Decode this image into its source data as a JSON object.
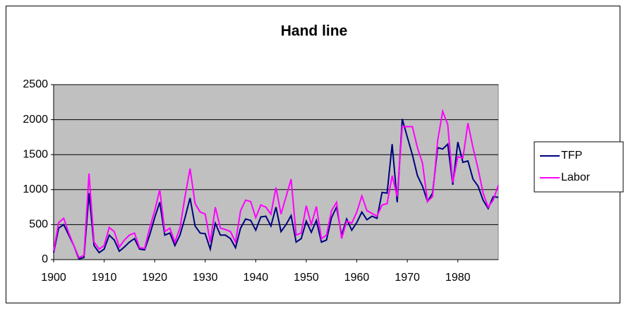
{
  "chart_data": {
    "type": "line",
    "title": "Hand line",
    "x": [
      1900,
      1901,
      1902,
      1903,
      1904,
      1905,
      1906,
      1907,
      1908,
      1909,
      1910,
      1911,
      1912,
      1913,
      1914,
      1915,
      1916,
      1917,
      1918,
      1919,
      1920,
      1921,
      1922,
      1923,
      1924,
      1925,
      1926,
      1927,
      1928,
      1929,
      1930,
      1931,
      1932,
      1933,
      1934,
      1935,
      1936,
      1937,
      1938,
      1939,
      1940,
      1941,
      1942,
      1943,
      1944,
      1945,
      1946,
      1947,
      1948,
      1949,
      1950,
      1951,
      1952,
      1953,
      1954,
      1955,
      1956,
      1957,
      1958,
      1959,
      1960,
      1961,
      1962,
      1963,
      1964,
      1965,
      1966,
      1967,
      1968,
      1969,
      1970,
      1971,
      1972,
      1973,
      1974,
      1975,
      1976,
      1977,
      1978,
      1979,
      1980,
      1981,
      1982,
      1983,
      1984,
      1985,
      1986,
      1987,
      1988
    ],
    "series": [
      {
        "name": "TFP",
        "color": "#000080",
        "values": [
          100,
          450,
          500,
          350,
          200,
          10,
          30,
          950,
          200,
          100,
          150,
          350,
          280,
          120,
          180,
          250,
          300,
          150,
          140,
          350,
          600,
          820,
          350,
          380,
          200,
          350,
          600,
          880,
          480,
          380,
          370,
          150,
          520,
          350,
          350,
          300,
          170,
          450,
          580,
          560,
          420,
          610,
          620,
          480,
          750,
          400,
          500,
          630,
          250,
          300,
          550,
          390,
          560,
          250,
          280,
          600,
          750,
          350,
          580,
          420,
          530,
          680,
          570,
          620,
          590,
          960,
          950,
          1650,
          820,
          2010,
          1750,
          1500,
          1200,
          1050,
          830,
          950,
          1600,
          1580,
          1650,
          1070,
          1680,
          1390,
          1410,
          1150,
          1050,
          850,
          730,
          900,
          890
        ]
      },
      {
        "name": "Labor",
        "color": "#ff00ff",
        "values": [
          120,
          530,
          590,
          380,
          200,
          30,
          60,
          1230,
          250,
          150,
          200,
          460,
          400,
          180,
          280,
          350,
          380,
          170,
          160,
          450,
          700,
          1000,
          400,
          450,
          250,
          450,
          900,
          1300,
          800,
          680,
          650,
          250,
          750,
          450,
          430,
          400,
          250,
          700,
          850,
          830,
          600,
          780,
          750,
          650,
          1030,
          650,
          900,
          1150,
          350,
          380,
          770,
          500,
          760,
          300,
          350,
          700,
          820,
          300,
          550,
          520,
          680,
          910,
          700,
          660,
          620,
          780,
          800,
          1200,
          900,
          1900,
          1900,
          1900,
          1600,
          1380,
          830,
          900,
          1700,
          2120,
          1930,
          1100,
          1470,
          1450,
          1950,
          1600,
          1300,
          950,
          750,
          850,
          1060
        ]
      }
    ],
    "xlim": [
      1900,
      1988
    ],
    "xticks": [
      1900,
      1910,
      1920,
      1930,
      1940,
      1950,
      1960,
      1970,
      1980
    ],
    "ylim": [
      0,
      2500
    ],
    "yticks": [
      0,
      500,
      1000,
      1500,
      2000,
      2500
    ],
    "grid": true,
    "legend": "right",
    "plot_background": "#c0c0c0"
  }
}
